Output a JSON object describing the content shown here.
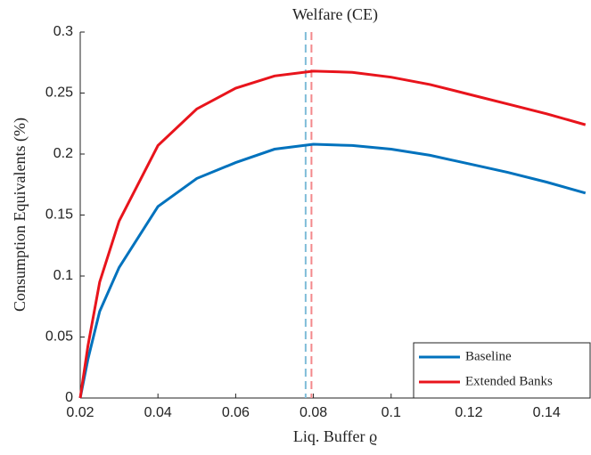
{
  "chart_data": {
    "type": "line",
    "title": "Welfare (CE)",
    "x_label": "Liq. Buffer ϱ",
    "y_label": "Consumption Equivalents (%)",
    "x": [
      0.02,
      0.022,
      0.025,
      0.03,
      0.04,
      0.05,
      0.06,
      0.07,
      0.08,
      0.09,
      0.1,
      0.11,
      0.12,
      0.13,
      0.14,
      0.15
    ],
    "series": [
      {
        "name": "Baseline",
        "color": "#0072bd",
        "values": [
          0,
          0.032,
          0.071,
          0.107,
          0.157,
          0.18,
          0.193,
          0.204,
          0.208,
          0.207,
          0.204,
          0.199,
          0.192,
          0.185,
          0.177,
          0.168
        ]
      },
      {
        "name": "Extended Banks",
        "color": "#e8141c",
        "values": [
          0,
          0.043,
          0.095,
          0.145,
          0.207,
          0.237,
          0.254,
          0.264,
          0.268,
          0.267,
          0.263,
          0.257,
          0.249,
          0.241,
          0.233,
          0.224
        ]
      }
    ],
    "reference_lines": [
      {
        "x": 0.078,
        "color": "#7fbcd8"
      },
      {
        "x": 0.0795,
        "color": "#f4898c"
      }
    ],
    "xlim": [
      0.02,
      0.1512
    ],
    "ylim": [
      0,
      0.3
    ],
    "xticks": [
      0.02,
      0.04,
      0.06,
      0.08,
      0.1,
      0.12,
      0.14
    ],
    "yticks": [
      0,
      0.05,
      0.1,
      0.15,
      0.2,
      0.25,
      0.3
    ],
    "legend": "lower right"
  }
}
